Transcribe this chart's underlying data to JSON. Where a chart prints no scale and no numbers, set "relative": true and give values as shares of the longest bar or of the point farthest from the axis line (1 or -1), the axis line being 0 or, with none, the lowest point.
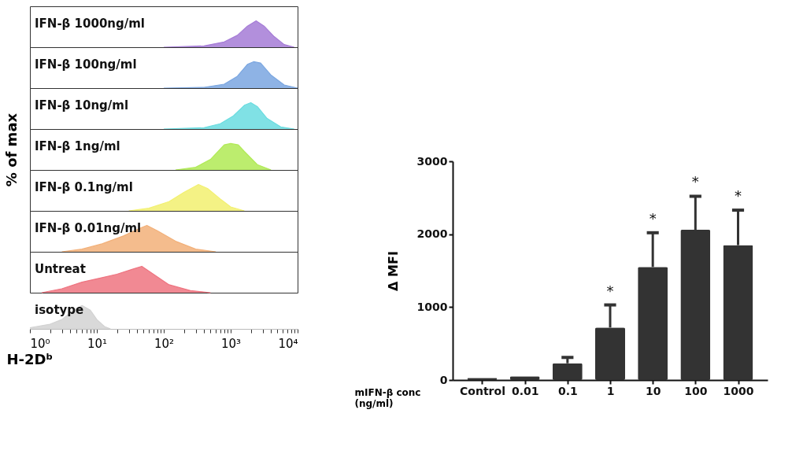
{
  "chart_data": [
    {
      "type": "area",
      "relative": true,
      "log": "x",
      "xlim": [
        1,
        10000
      ],
      "tick_labels": false,
      "annotations": [
        "IFN-β 1000ng/ml"
      ],
      "series": [
        {
          "color": "#a57bd6",
          "x": [
            100,
            400,
            800,
            1260,
            1780,
            2400,
            3160,
            4470,
            6310,
            8910
          ],
          "values": [
            0,
            0.05,
            0.2,
            0.45,
            0.8,
            1,
            0.8,
            0.4,
            0.1,
            0
          ]
        }
      ]
    },
    {
      "type": "area",
      "relative": true,
      "log": "x",
      "xlim": [
        1,
        10000
      ],
      "tick_labels": false,
      "annotations": [
        "IFN-β 100ng/ml"
      ],
      "series": [
        {
          "color": "#7aa6e0",
          "x": [
            100,
            400,
            800,
            1260,
            1780,
            2200,
            2800,
            3980,
            6310,
            10000
          ],
          "values": [
            0,
            0.03,
            0.15,
            0.45,
            0.9,
            1,
            0.95,
            0.5,
            0.12,
            0
          ]
        }
      ]
    },
    {
      "type": "area",
      "relative": true,
      "log": "x",
      "xlim": [
        1,
        10000
      ],
      "tick_labels": false,
      "annotations": [
        "IFN-β 10ng/ml"
      ],
      "series": [
        {
          "color": "#6adce0",
          "x": [
            100,
            400,
            700,
            1100,
            1600,
            2000,
            2500,
            3500,
            5600,
            8900
          ],
          "values": [
            0,
            0.05,
            0.2,
            0.5,
            0.9,
            1,
            0.85,
            0.4,
            0.08,
            0
          ]
        }
      ]
    },
    {
      "type": "area",
      "relative": true,
      "log": "x",
      "xlim": [
        1,
        10000
      ],
      "tick_labels": false,
      "ylabel": "% of max",
      "annotations": [
        "IFN-β 1ng/ml"
      ],
      "series": [
        {
          "color": "#b0ea55",
          "x": [
            150,
            300,
            500,
            800,
            1000,
            1300,
            1600,
            2500,
            4000
          ],
          "values": [
            0,
            0.1,
            0.4,
            0.95,
            1,
            0.95,
            0.7,
            0.2,
            0
          ]
        }
      ]
    },
    {
      "type": "area",
      "relative": true,
      "log": "x",
      "xlim": [
        1,
        10000
      ],
      "tick_labels": false,
      "annotations": [
        "IFN-β 0.1ng/ml"
      ],
      "series": [
        {
          "color": "#f2f070",
          "x": [
            30,
            60,
            120,
            200,
            330,
            450,
            700,
            1000,
            1600
          ],
          "values": [
            0,
            0.1,
            0.35,
            0.7,
            1,
            0.85,
            0.45,
            0.15,
            0
          ]
        }
      ]
    },
    {
      "type": "area",
      "relative": true,
      "log": "x",
      "xlim": [
        1,
        10000
      ],
      "tick_labels": false,
      "annotations": [
        "IFN-β 0.01ng/ml"
      ],
      "series": [
        {
          "color": "#f2b079",
          "x": [
            3,
            6,
            12,
            25,
            45,
            56,
            80,
            150,
            300,
            600
          ],
          "values": [
            0,
            0.1,
            0.3,
            0.6,
            0.9,
            1,
            0.8,
            0.4,
            0.1,
            0
          ]
        }
      ]
    },
    {
      "type": "area",
      "relative": true,
      "log": "x",
      "xlim": [
        1,
        10000
      ],
      "tick_labels": false,
      "annotations": [
        "Untreat"
      ],
      "series": [
        {
          "color": "#ee7480",
          "x": [
            1.5,
            3,
            6,
            11,
            20,
            35,
            47,
            70,
            120,
            250,
            500
          ],
          "values": [
            0,
            0.15,
            0.4,
            0.55,
            0.7,
            0.9,
            1,
            0.7,
            0.3,
            0.08,
            0
          ]
        }
      ]
    },
    {
      "type": "area",
      "relative": true,
      "log": "x",
      "xlim": [
        1,
        10000
      ],
      "tick_labels": "x",
      "xlabel": "H-2Dᵇ",
      "annotations": [
        "isotype"
      ],
      "xticks": [
        {
          "value": 1,
          "label": "10⁰"
        },
        {
          "value": 2,
          "label": null
        },
        {
          "value": 3,
          "label": null
        },
        {
          "value": 4,
          "label": null
        },
        {
          "value": 5,
          "label": null
        },
        {
          "value": 6,
          "label": null
        },
        {
          "value": 7,
          "label": null
        },
        {
          "value": 8,
          "label": null
        },
        {
          "value": 9,
          "label": null
        },
        {
          "value": 10,
          "label": "10¹"
        },
        {
          "value": 20,
          "label": null
        },
        {
          "value": 30,
          "label": null
        },
        {
          "value": 40,
          "label": null
        },
        {
          "value": 50,
          "label": null
        },
        {
          "value": 60,
          "label": null
        },
        {
          "value": 70,
          "label": null
        },
        {
          "value": 80,
          "label": null
        },
        {
          "value": 90,
          "label": null
        },
        {
          "value": 100,
          "label": "10²"
        },
        {
          "value": 200,
          "label": null
        },
        {
          "value": 300,
          "label": null
        },
        {
          "value": 400,
          "label": null
        },
        {
          "value": 500,
          "label": null
        },
        {
          "value": 600,
          "label": null
        },
        {
          "value": 700,
          "label": null
        },
        {
          "value": 800,
          "label": null
        },
        {
          "value": 900,
          "label": null
        },
        {
          "value": 1000,
          "label": "10³"
        },
        {
          "value": 2000,
          "label": null
        },
        {
          "value": 3000,
          "label": null
        },
        {
          "value": 4000,
          "label": null
        },
        {
          "value": 5000,
          "label": null
        },
        {
          "value": 6000,
          "label": null
        },
        {
          "value": 7000,
          "label": null
        },
        {
          "value": 8000,
          "label": null
        },
        {
          "value": 9000,
          "label": null
        },
        {
          "value": 10000,
          "label": "10⁴"
        }
      ],
      "series": [
        {
          "color": "#d2d2d2",
          "x": [
            1,
            2,
            3,
            4.5,
            6,
            8,
            10,
            13,
            16
          ],
          "values": [
            0.05,
            0.2,
            0.4,
            0.8,
            1,
            0.8,
            0.4,
            0.1,
            0
          ]
        }
      ]
    },
    {
      "type": "bar",
      "categories": [
        "Control",
        "0.01",
        "0.1",
        "1",
        "10",
        "100",
        "1000"
      ],
      "xlabel": "mIFN-β conc\n(ng/ml)",
      "ylabel": "Δ MFI",
      "ylim": [
        0,
        3000
      ],
      "yticks": [
        0,
        1000,
        2000,
        3000
      ],
      "grid": false,
      "color": "#333333",
      "values": [
        30,
        50,
        230,
        720,
        1550,
        2060,
        1850
      ],
      "errors": [
        null,
        null,
        [
          230,
          310
        ],
        [
          720,
          1030
        ],
        [
          1550,
          2020
        ],
        [
          2060,
          2520
        ],
        [
          1850,
          2330
        ]
      ],
      "annotations": [
        {
          "text": "*",
          "x": "1",
          "y": 1030
        },
        {
          "text": "*",
          "x": "10",
          "y": 2020
        },
        {
          "text": "*",
          "x": "100",
          "y": 2520
        },
        {
          "text": "*",
          "x": "1000",
          "y": 2330
        }
      ]
    }
  ]
}
